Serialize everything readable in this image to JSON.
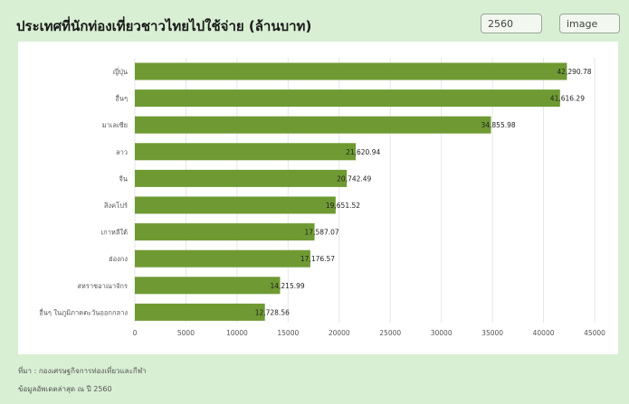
{
  "header": {
    "title": "ประเทศที่นักท่องเที่ยวชาวไทยไปใช้จ่าย (ล้านบาท)",
    "year_select_value": "2560",
    "view_select_value": "image"
  },
  "footer": {
    "source": "ที่มา : กองเศรษฐกิจการท่องเที่ยวและกีฬา",
    "updated": "ข้อมูลอัพเดตล่าสุด ณ ปี 2560"
  },
  "colors": {
    "bar": "#6f9a33",
    "background": "#d8efd3",
    "panel": "#ffffff",
    "grid": "#e6e6e6"
  },
  "chart_data": {
    "type": "bar",
    "orientation": "horizontal",
    "categories": [
      "ญี่ปุ่น",
      "อื่นๆ",
      "มาเลเซีย",
      "ลาว",
      "จีน",
      "สิงคโปร์",
      "เกาหลีใต้",
      "ฮ่องกง",
      "สหราชอาณาจักร",
      "อื่นๆ ในภูมิภาคตะวันออกกลาง"
    ],
    "values": [
      42290.78,
      41616.29,
      34855.98,
      21620.94,
      20742.49,
      19651.52,
      17587.07,
      17176.57,
      14215.99,
      12728.56
    ],
    "value_labels": [
      "42,290.78",
      "41,616.29",
      "34,855.98",
      "21,620.94",
      "20,742.49",
      "19,651.52",
      "17,587.07",
      "17,176.57",
      "14,215.99",
      "12,728.56"
    ],
    "xlim": [
      0,
      45000
    ],
    "xticks": [
      0,
      5000,
      10000,
      15000,
      20000,
      25000,
      30000,
      35000,
      40000,
      45000
    ],
    "grid": true,
    "legend": "none"
  }
}
